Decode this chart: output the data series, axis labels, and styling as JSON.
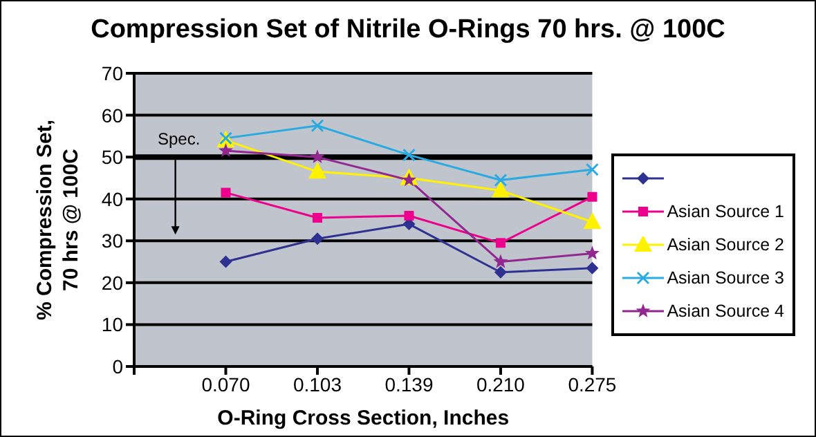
{
  "chart_data": {
    "type": "line",
    "title": "Compression Set of Nitrile O-Rings 70 hrs. @ 100C",
    "xlabel": "O-Ring Cross Section, Inches",
    "ylabel": "% Compression Set, 70 hrs @ 100C",
    "categories": [
      null,
      "0.070",
      "0.103",
      "0.139",
      "0.210",
      "0.275"
    ],
    "series": [
      {
        "color": "#2e3192",
        "marker": "diamond",
        "values": [
          null,
          25,
          30.5,
          34,
          22.5,
          23.5
        ]
      },
      {
        "name": "Asian Source 1",
        "color": "#ec008c",
        "marker": "square",
        "values": [
          null,
          41.5,
          35.5,
          36,
          29.5,
          40.5
        ]
      },
      {
        "name": "Asian Source 2",
        "color": "#fff200",
        "marker": "triangle",
        "values": [
          null,
          54,
          46.5,
          45,
          42,
          34.5
        ]
      },
      {
        "name": "Asian Source 3",
        "color": "#29abe2",
        "marker": "cross",
        "values": [
          null,
          54.5,
          57.5,
          50.5,
          44.5,
          47
        ]
      },
      {
        "name": "Asian Source 4",
        "color": "#92278f",
        "marker": "star",
        "values": [
          null,
          51.5,
          50,
          44.5,
          25,
          27
        ]
      }
    ],
    "ylim": [
      0,
      70
    ],
    "yticks": [
      0,
      10,
      20,
      30,
      40,
      50,
      60,
      70
    ],
    "grid": "y",
    "legend": "right",
    "ref_lines": [
      {
        "axis": "y",
        "value": 50,
        "label": "Spec.",
        "color": "#000000"
      }
    ]
  }
}
